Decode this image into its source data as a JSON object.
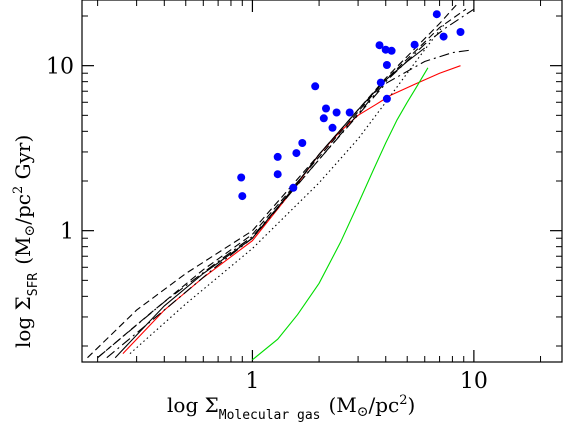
{
  "chart_data": {
    "type": "scatter",
    "title": "",
    "x_scale": "log",
    "y_scale": "log",
    "xlim": [
      0.17,
      25
    ],
    "ylim": [
      0.16,
      25
    ],
    "grid": false,
    "legend": "none",
    "xlabel": {
      "prefix": "log Σ",
      "subscript": "Molecular gas",
      "suffix": "(M",
      "sun_symbol": "⊙",
      "tail": "/pc",
      "exponent": "2",
      "close": ")"
    },
    "ylabel": {
      "prefix": "log Σ",
      "subscript": "SFR",
      "suffix": "(M",
      "sun_symbol": "⊙",
      "tail": "/pc",
      "exponent": "2",
      "close": " Gyr)"
    },
    "x_ticks": [
      {
        "value": 1,
        "label": "1"
      },
      {
        "value": 10,
        "label": "10"
      }
    ],
    "y_ticks": [
      {
        "value": 1,
        "label": "1"
      },
      {
        "value": 10,
        "label": "10"
      }
    ],
    "x_minor": [
      0.2,
      0.3,
      0.4,
      0.5,
      0.6,
      0.7,
      0.8,
      0.9,
      2,
      3,
      4,
      5,
      6,
      7,
      8,
      9,
      20
    ],
    "y_minor": [
      0.2,
      0.3,
      0.4,
      0.5,
      0.6,
      0.7,
      0.8,
      0.9,
      2,
      3,
      4,
      5,
      6,
      7,
      8,
      9,
      20
    ],
    "colors": {
      "points": "#0000ff",
      "red_line": "#ff0000",
      "green_line": "#00dd00",
      "black_lines": "#000000"
    },
    "points": [
      {
        "x": 0.89,
        "y": 2.1
      },
      {
        "x": 0.9,
        "y": 1.62
      },
      {
        "x": 1.3,
        "y": 2.8
      },
      {
        "x": 1.3,
        "y": 2.2
      },
      {
        "x": 1.53,
        "y": 1.82
      },
      {
        "x": 1.58,
        "y": 2.95
      },
      {
        "x": 1.68,
        "y": 3.4
      },
      {
        "x": 1.92,
        "y": 7.5
      },
      {
        "x": 2.1,
        "y": 4.8
      },
      {
        "x": 2.15,
        "y": 5.5
      },
      {
        "x": 2.3,
        "y": 4.2
      },
      {
        "x": 2.4,
        "y": 5.2
      },
      {
        "x": 2.75,
        "y": 5.2
      },
      {
        "x": 3.75,
        "y": 13.3
      },
      {
        "x": 3.8,
        "y": 7.9
      },
      {
        "x": 4.0,
        "y": 12.5
      },
      {
        "x": 4.05,
        "y": 10.1
      },
      {
        "x": 4.05,
        "y": 6.3
      },
      {
        "x": 4.25,
        "y": 12.3
      },
      {
        "x": 5.4,
        "y": 13.4
      },
      {
        "x": 6.8,
        "y": 20.5
      },
      {
        "x": 7.3,
        "y": 15.0
      },
      {
        "x": 8.7,
        "y": 16.0
      }
    ],
    "series": [
      {
        "style": "solid",
        "color": "red",
        "x": [
          0.26,
          0.4,
          0.6,
          1.0,
          1.5,
          2.0,
          2.5,
          3.0,
          3.6,
          4.2,
          5.5,
          7.0,
          8.7
        ],
        "y": [
          0.18,
          0.33,
          0.52,
          0.87,
          1.72,
          2.9,
          4.0,
          5.0,
          5.8,
          6.6,
          7.8,
          9.0,
          10.0
        ]
      },
      {
        "style": "solid",
        "color": "green",
        "x": [
          1.0,
          1.3,
          1.6,
          2.0,
          2.5,
          3.0,
          3.5,
          4.0,
          4.5,
          5.0,
          5.5,
          6.2
        ],
        "y": [
          0.165,
          0.22,
          0.31,
          0.48,
          0.85,
          1.45,
          2.3,
          3.4,
          4.7,
          6.0,
          7.4,
          9.7
        ]
      },
      {
        "style": "solid",
        "color": "black",
        "x": [
          0.24,
          0.4,
          0.6,
          1.0,
          1.5,
          2.0,
          3.0,
          4.0,
          5.0,
          6.0
        ],
        "y": [
          0.17,
          0.35,
          0.55,
          0.9,
          1.75,
          2.9,
          5.4,
          8.2,
          10.6,
          12.8
        ]
      },
      {
        "style": "dashed",
        "color": "black",
        "x": [
          0.18,
          0.3,
          0.5,
          1.0,
          2.0,
          4.0,
          7.0,
          8.5
        ],
        "y": [
          0.17,
          0.33,
          0.55,
          1.0,
          2.9,
          8.4,
          18.0,
          24.0
        ]
      },
      {
        "style": "dashed",
        "color": "black",
        "x": [
          0.2,
          0.35,
          0.6,
          1.0,
          2.0,
          4.0,
          7.0,
          9.2
        ],
        "y": [
          0.17,
          0.32,
          0.58,
          0.95,
          2.8,
          8.2,
          17.0,
          22.0
        ]
      },
      {
        "style": "dashdot",
        "color": "black",
        "x": [
          0.22,
          0.4,
          0.7,
          1.0,
          2.0,
          4.0,
          6.0,
          7.5,
          10.0
        ],
        "y": [
          0.17,
          0.33,
          0.62,
          0.9,
          2.7,
          8.0,
          13.5,
          17.0,
          22.0
        ]
      },
      {
        "style": "dashdot",
        "color": "black",
        "x": [
          0.2,
          0.4,
          0.7,
          1.0,
          2.0,
          4.0,
          6.0,
          8.0,
          9.6
        ],
        "y": [
          0.17,
          0.37,
          0.65,
          0.92,
          2.7,
          7.8,
          10.6,
          12.0,
          12.4
        ]
      },
      {
        "style": "dotted",
        "color": "black",
        "x": [
          0.28,
          0.5,
          1.0,
          2.0,
          3.0,
          4.0,
          5.0,
          6.0,
          7.4
        ],
        "y": [
          0.18,
          0.36,
          0.78,
          1.95,
          3.6,
          6.0,
          9.0,
          12.5,
          18.0
        ]
      }
    ]
  }
}
